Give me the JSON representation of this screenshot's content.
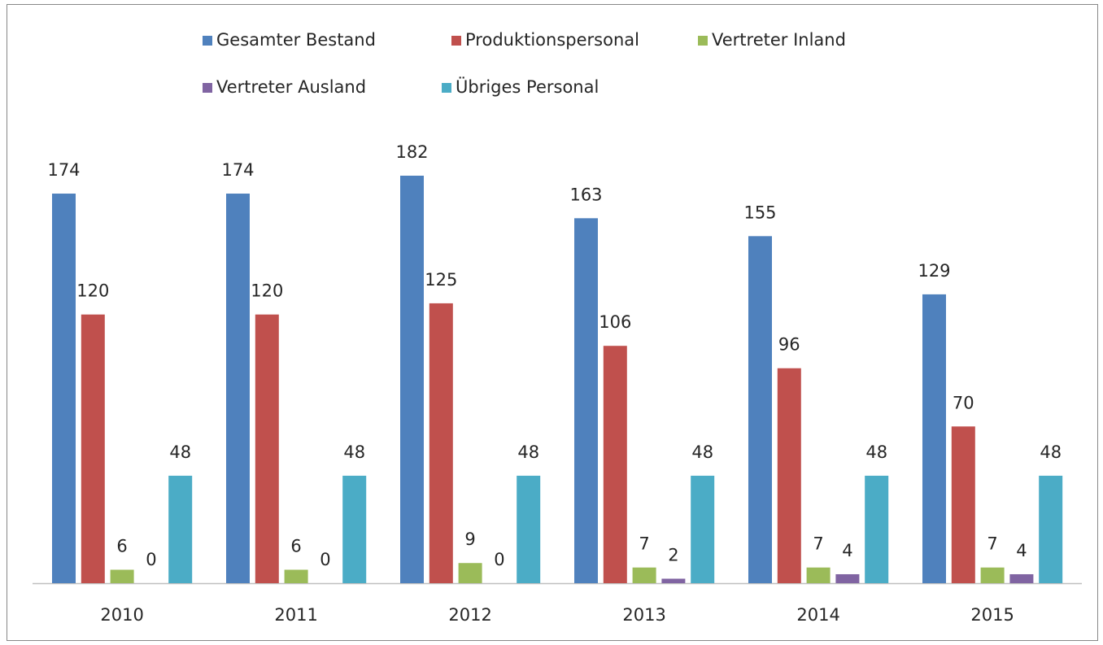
{
  "chart_data": {
    "type": "bar",
    "categories": [
      "2010",
      "2011",
      "2012",
      "2013",
      "2014",
      "2015"
    ],
    "series": [
      {
        "name": "Gesamter Bestand",
        "color": "#4f81bd",
        "values": [
          174,
          174,
          182,
          163,
          155,
          129
        ]
      },
      {
        "name": "Produktionspersonal",
        "color": "#c0504d",
        "values": [
          120,
          120,
          125,
          106,
          96,
          70
        ]
      },
      {
        "name": "Vertreter Inland",
        "color": "#9bbb59",
        "values": [
          6,
          6,
          9,
          7,
          7,
          7
        ]
      },
      {
        "name": "Vertreter Ausland",
        "color": "#8064a2",
        "values": [
          0,
          0,
          0,
          2,
          4,
          4
        ]
      },
      {
        "name": "Übriges Personal",
        "color": "#4bacc6",
        "values": [
          48,
          48,
          48,
          48,
          48,
          48
        ]
      }
    ],
    "legend": "top"
  }
}
